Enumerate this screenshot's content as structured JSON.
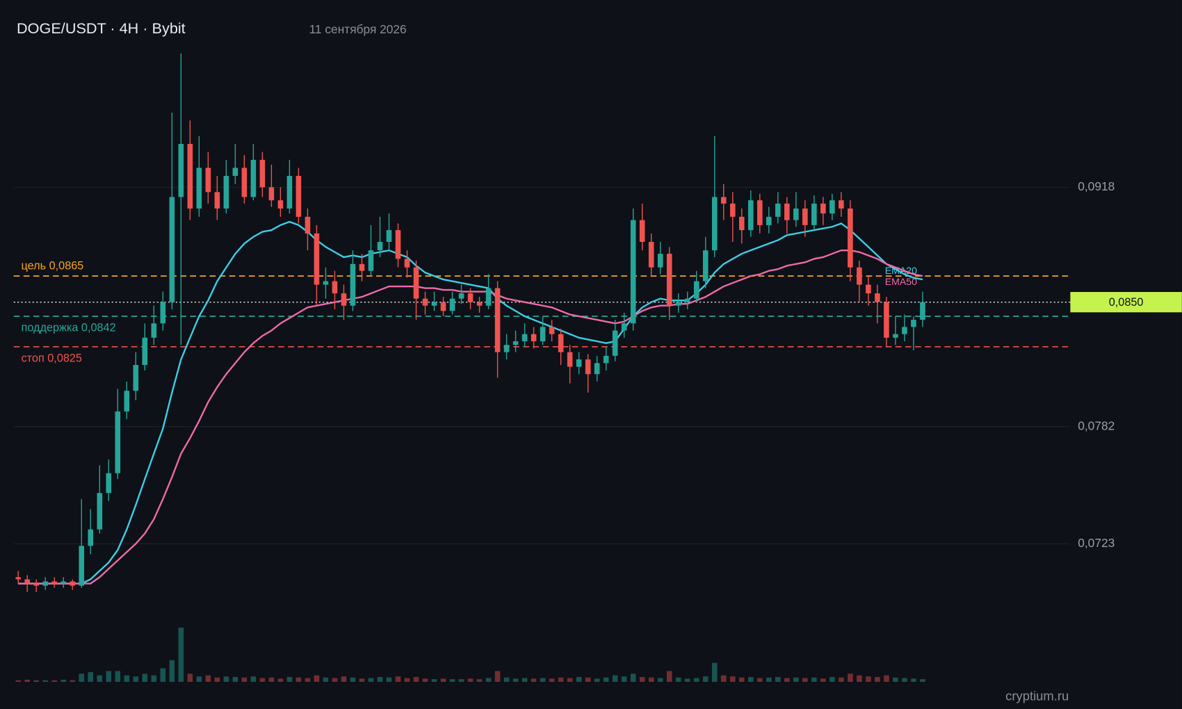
{
  "chart_data": {
    "type": "candlestick",
    "title": "DOGE/USDT · 4H · Bybit",
    "date": "11 сентября 2026",
    "watermark": "cryptium.ru",
    "log_scale": true,
    "grid": true,
    "ylim": [
      0.0695,
      0.1025
    ],
    "yticks": [
      {
        "value": 0.0918,
        "label": "0,0918"
      },
      {
        "value": 0.0782,
        "label": "0,0782"
      },
      {
        "value": 0.0723,
        "label": "0,0723"
      }
    ],
    "up_color": "#26a69a",
    "down_color": "#ef5350",
    "candles": [
      [
        0.0707,
        0.071,
        0.0704,
        0.0706
      ],
      [
        0.0706,
        0.0708,
        0.07,
        0.0704
      ],
      [
        0.0704,
        0.0706,
        0.07,
        0.0703
      ],
      [
        0.0703,
        0.0707,
        0.0701,
        0.0705
      ],
      [
        0.0705,
        0.0707,
        0.0702,
        0.0704
      ],
      [
        0.0704,
        0.0707,
        0.0702,
        0.0705
      ],
      [
        0.0705,
        0.0706,
        0.0701,
        0.0703
      ],
      [
        0.0703,
        0.0745,
        0.0702,
        0.0722
      ],
      [
        0.0722,
        0.074,
        0.0718,
        0.073
      ],
      [
        0.073,
        0.0762,
        0.0728,
        0.0748
      ],
      [
        0.0748,
        0.0765,
        0.0744,
        0.0758
      ],
      [
        0.0758,
        0.0802,
        0.0755,
        0.079
      ],
      [
        0.079,
        0.0806,
        0.0786,
        0.0801
      ],
      [
        0.0801,
        0.0822,
        0.0796,
        0.0815
      ],
      [
        0.0815,
        0.0838,
        0.0812,
        0.083
      ],
      [
        0.083,
        0.0848,
        0.0826,
        0.0838
      ],
      [
        0.0838,
        0.0856,
        0.0834,
        0.085
      ],
      [
        0.085,
        0.0965,
        0.0846,
        0.0912
      ],
      [
        0.0912,
        0.1004,
        0.0826,
        0.0945
      ],
      [
        0.0945,
        0.096,
        0.0898,
        0.0905
      ],
      [
        0.0905,
        0.095,
        0.09,
        0.093
      ],
      [
        0.093,
        0.094,
        0.0908,
        0.0915
      ],
      [
        0.0915,
        0.0925,
        0.0898,
        0.0905
      ],
      [
        0.0905,
        0.0935,
        0.0902,
        0.0925
      ],
      [
        0.0925,
        0.0945,
        0.092,
        0.093
      ],
      [
        0.093,
        0.0938,
        0.0908,
        0.0912
      ],
      [
        0.0912,
        0.0945,
        0.091,
        0.0935
      ],
      [
        0.0935,
        0.094,
        0.0912,
        0.0918
      ],
      [
        0.0918,
        0.0932,
        0.0906,
        0.091
      ],
      [
        0.091,
        0.0918,
        0.09,
        0.0905
      ],
      [
        0.0905,
        0.0935,
        0.0902,
        0.0925
      ],
      [
        0.0925,
        0.093,
        0.0896,
        0.09
      ],
      [
        0.09,
        0.0905,
        0.088,
        0.089
      ],
      [
        0.089,
        0.0895,
        0.0848,
        0.086
      ],
      [
        0.086,
        0.087,
        0.0852,
        0.0862
      ],
      [
        0.0862,
        0.0868,
        0.0846,
        0.0855
      ],
      [
        0.0855,
        0.086,
        0.084,
        0.0848
      ],
      [
        0.0848,
        0.088,
        0.0845,
        0.0872
      ],
      [
        0.0872,
        0.0878,
        0.0862,
        0.0868
      ],
      [
        0.0868,
        0.0895,
        0.0865,
        0.088
      ],
      [
        0.088,
        0.09,
        0.0876,
        0.0885
      ],
      [
        0.0885,
        0.0902,
        0.088,
        0.0892
      ],
      [
        0.0892,
        0.0896,
        0.087,
        0.0875
      ],
      [
        0.0875,
        0.088,
        0.0864,
        0.087
      ],
      [
        0.087,
        0.0874,
        0.084,
        0.0852
      ],
      [
        0.0852,
        0.0856,
        0.0843,
        0.0848
      ],
      [
        0.0848,
        0.0856,
        0.0845,
        0.085
      ],
      [
        0.085,
        0.0853,
        0.0842,
        0.0845
      ],
      [
        0.0845,
        0.0856,
        0.0843,
        0.0852
      ],
      [
        0.0852,
        0.086,
        0.0849,
        0.0855
      ],
      [
        0.0855,
        0.0858,
        0.0846,
        0.085
      ],
      [
        0.085,
        0.0853,
        0.0844,
        0.0848
      ],
      [
        0.0848,
        0.0866,
        0.0846,
        0.0858
      ],
      [
        0.0858,
        0.0862,
        0.0808,
        0.0822
      ],
      [
        0.0822,
        0.0832,
        0.0818,
        0.0826
      ],
      [
        0.0826,
        0.0834,
        0.0822,
        0.0828
      ],
      [
        0.0828,
        0.0838,
        0.0825,
        0.0832
      ],
      [
        0.0832,
        0.0836,
        0.0824,
        0.0828
      ],
      [
        0.0828,
        0.0842,
        0.0826,
        0.0836
      ],
      [
        0.0836,
        0.084,
        0.0828,
        0.0832
      ],
      [
        0.0832,
        0.0835,
        0.0815,
        0.0822
      ],
      [
        0.0822,
        0.0826,
        0.0805,
        0.0814
      ],
      [
        0.0814,
        0.0822,
        0.081,
        0.0818
      ],
      [
        0.0818,
        0.0821,
        0.08,
        0.081
      ],
      [
        0.081,
        0.082,
        0.0806,
        0.0816
      ],
      [
        0.0816,
        0.0825,
        0.0812,
        0.082
      ],
      [
        0.082,
        0.084,
        0.0817,
        0.0834
      ],
      [
        0.0834,
        0.0844,
        0.083,
        0.0838
      ],
      [
        0.0838,
        0.0905,
        0.0834,
        0.0898
      ],
      [
        0.0898,
        0.0908,
        0.088,
        0.0885
      ],
      [
        0.0885,
        0.089,
        0.0865,
        0.087
      ],
      [
        0.087,
        0.0885,
        0.0866,
        0.0878
      ],
      [
        0.0878,
        0.0882,
        0.084,
        0.0848
      ],
      [
        0.0848,
        0.0855,
        0.0844,
        0.085
      ],
      [
        0.085,
        0.0856,
        0.0846,
        0.0852
      ],
      [
        0.0852,
        0.0868,
        0.085,
        0.0862
      ],
      [
        0.0862,
        0.0888,
        0.0858,
        0.088
      ],
      [
        0.088,
        0.095,
        0.0876,
        0.0912
      ],
      [
        0.0912,
        0.092,
        0.0898,
        0.0908
      ],
      [
        0.0908,
        0.0915,
        0.0885,
        0.09
      ],
      [
        0.09,
        0.0905,
        0.0884,
        0.0892
      ],
      [
        0.0892,
        0.0916,
        0.0888,
        0.091
      ],
      [
        0.091,
        0.0914,
        0.089,
        0.0895
      ],
      [
        0.0895,
        0.0906,
        0.089,
        0.09
      ],
      [
        0.09,
        0.0915,
        0.0896,
        0.0908
      ],
      [
        0.0908,
        0.0912,
        0.089,
        0.0898
      ],
      [
        0.0898,
        0.0915,
        0.0894,
        0.0905
      ],
      [
        0.0905,
        0.091,
        0.0888,
        0.0895
      ],
      [
        0.0895,
        0.0913,
        0.0892,
        0.0908
      ],
      [
        0.0908,
        0.0912,
        0.0895,
        0.0902
      ],
      [
        0.0902,
        0.0914,
        0.0898,
        0.091
      ],
      [
        0.091,
        0.0915,
        0.09,
        0.0905
      ],
      [
        0.0905,
        0.091,
        0.0862,
        0.087
      ],
      [
        0.087,
        0.0874,
        0.085,
        0.086
      ],
      [
        0.086,
        0.0865,
        0.0848,
        0.0855
      ],
      [
        0.0855,
        0.086,
        0.0838,
        0.085
      ],
      [
        0.085,
        0.0853,
        0.0825,
        0.083
      ],
      [
        0.083,
        0.0842,
        0.0826,
        0.0832
      ],
      [
        0.0832,
        0.0843,
        0.0828,
        0.0836
      ],
      [
        0.0836,
        0.0842,
        0.0823,
        0.084
      ],
      [
        0.084,
        0.0856,
        0.0836,
        0.085
      ]
    ],
    "volume": [
      3,
      4,
      3,
      3,
      3,
      4,
      3,
      15,
      18,
      12,
      20,
      20,
      12,
      10,
      15,
      12,
      25,
      40,
      100,
      15,
      10,
      12,
      8,
      10,
      9,
      8,
      10,
      7,
      8,
      6,
      9,
      8,
      7,
      12,
      8,
      7,
      10,
      8,
      6,
      7,
      9,
      8,
      10,
      7,
      9,
      6,
      5,
      6,
      5,
      5,
      6,
      5,
      7,
      20,
      8,
      6,
      7,
      6,
      7,
      6,
      8,
      7,
      9,
      8,
      6,
      8,
      12,
      10,
      15,
      9,
      8,
      7,
      20,
      8,
      6,
      7,
      10,
      35,
      12,
      10,
      8,
      9,
      7,
      8,
      9,
      7,
      8,
      7,
      8,
      6,
      9,
      8,
      15,
      12,
      10,
      9,
      12,
      8,
      7,
      6,
      5
    ],
    "series": [
      {
        "name": "EMA20",
        "color": "#3ccfe8",
        "values": [
          0.0704,
          0.0704,
          0.0704,
          0.0704,
          0.0704,
          0.0704,
          0.0704,
          0.0704,
          0.0706,
          0.071,
          0.0714,
          0.072,
          0.073,
          0.0742,
          0.0755,
          0.0768,
          0.0781,
          0.08,
          0.0818,
          0.083,
          0.0842,
          0.0851,
          0.0862,
          0.087,
          0.0878,
          0.0884,
          0.0888,
          0.0891,
          0.0892,
          0.0895,
          0.0897,
          0.0895,
          0.0891,
          0.0886,
          0.0882,
          0.0879,
          0.0876,
          0.0877,
          0.0876,
          0.0878,
          0.0879,
          0.088,
          0.0878,
          0.0876,
          0.0871,
          0.0867,
          0.0865,
          0.0863,
          0.0862,
          0.0861,
          0.086,
          0.0859,
          0.0858,
          0.0852,
          0.0848,
          0.0845,
          0.0842,
          0.084,
          0.0838,
          0.0836,
          0.0834,
          0.0832,
          0.083,
          0.0829,
          0.0828,
          0.0827,
          0.0828,
          0.0835,
          0.0842,
          0.0847,
          0.085,
          0.0852,
          0.0851,
          0.0851,
          0.0851,
          0.0855,
          0.086,
          0.0867,
          0.0872,
          0.0875,
          0.0878,
          0.088,
          0.0882,
          0.0884,
          0.0886,
          0.0889,
          0.089,
          0.0891,
          0.0892,
          0.0893,
          0.0894,
          0.0896,
          0.0892,
          0.0887,
          0.0882,
          0.0877,
          0.0872,
          0.0869,
          0.0866,
          0.0864,
          0.0863
        ]
      },
      {
        "name": "EMA50",
        "color": "#f06aa9",
        "values": [
          0.0704,
          0.0704,
          0.0704,
          0.0704,
          0.0704,
          0.0704,
          0.0704,
          0.0704,
          0.0704,
          0.0707,
          0.0711,
          0.0715,
          0.0719,
          0.0723,
          0.0728,
          0.0735,
          0.0745,
          0.0756,
          0.0768,
          0.0776,
          0.0785,
          0.0795,
          0.0803,
          0.081,
          0.0816,
          0.0822,
          0.0827,
          0.0831,
          0.0834,
          0.0838,
          0.0841,
          0.0844,
          0.0847,
          0.0848,
          0.0849,
          0.085,
          0.0851,
          0.0852,
          0.0853,
          0.0855,
          0.0857,
          0.0859,
          0.0859,
          0.0859,
          0.0859,
          0.0858,
          0.0858,
          0.0857,
          0.0857,
          0.0856,
          0.0856,
          0.0856,
          0.0856,
          0.0854,
          0.0852,
          0.0851,
          0.085,
          0.0849,
          0.0848,
          0.0847,
          0.0845,
          0.0843,
          0.0842,
          0.0841,
          0.084,
          0.0839,
          0.0838,
          0.0839,
          0.0842,
          0.0845,
          0.0847,
          0.0848,
          0.0848,
          0.0849,
          0.0849,
          0.0851,
          0.0853,
          0.0856,
          0.0859,
          0.0861,
          0.0863,
          0.0865,
          0.0866,
          0.0868,
          0.0869,
          0.0871,
          0.0872,
          0.0873,
          0.0875,
          0.0876,
          0.0878,
          0.088,
          0.088,
          0.0879,
          0.0877,
          0.0875,
          0.0872,
          0.087,
          0.0868,
          0.0866,
          0.0865
        ]
      }
    ],
    "levels": [
      {
        "label": "цель 0,0865",
        "value": 0.0865,
        "color": "#f5a623"
      },
      {
        "label": "поддержка 0,0842",
        "value": 0.0842,
        "color": "#26a69a"
      },
      {
        "label": "стоп 0,0825",
        "value": 0.0825,
        "color": "#ef5350"
      }
    ],
    "last_price": {
      "value": 0.085,
      "label": "0,0850",
      "color": "#c6f24e"
    }
  }
}
